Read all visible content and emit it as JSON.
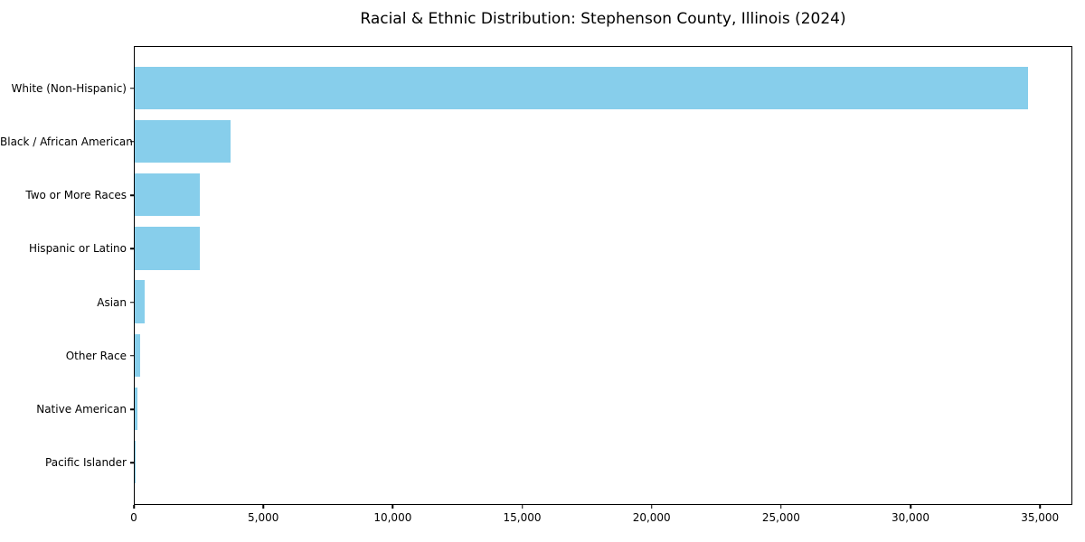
{
  "chart_data": {
    "type": "bar",
    "orientation": "horizontal",
    "title": "Racial & Ethnic Distribution: Stephenson County, Illinois (2024)",
    "xlabel": "",
    "ylabel": "",
    "categories": [
      "White (Non-Hispanic)",
      "Black / African American",
      "Two or More Races",
      "Hispanic or Latino",
      "Asian",
      "Other Race",
      "Native American",
      "Pacific Islander"
    ],
    "values": [
      34500,
      3700,
      2500,
      2500,
      400,
      200,
      120,
      15
    ],
    "xlim": [
      0,
      36250
    ],
    "xticks": [
      {
        "value": 0,
        "label": "0"
      },
      {
        "value": 5000,
        "label": "5,000"
      },
      {
        "value": 10000,
        "label": "10,000"
      },
      {
        "value": 15000,
        "label": "15,000"
      },
      {
        "value": 20000,
        "label": "20,000"
      },
      {
        "value": 25000,
        "label": "25,000"
      },
      {
        "value": 30000,
        "label": "30,000"
      },
      {
        "value": 35000,
        "label": "35,000"
      }
    ],
    "bar_color": "#87CEEB",
    "text_color": "#000000",
    "grid": false,
    "legend": null
  }
}
